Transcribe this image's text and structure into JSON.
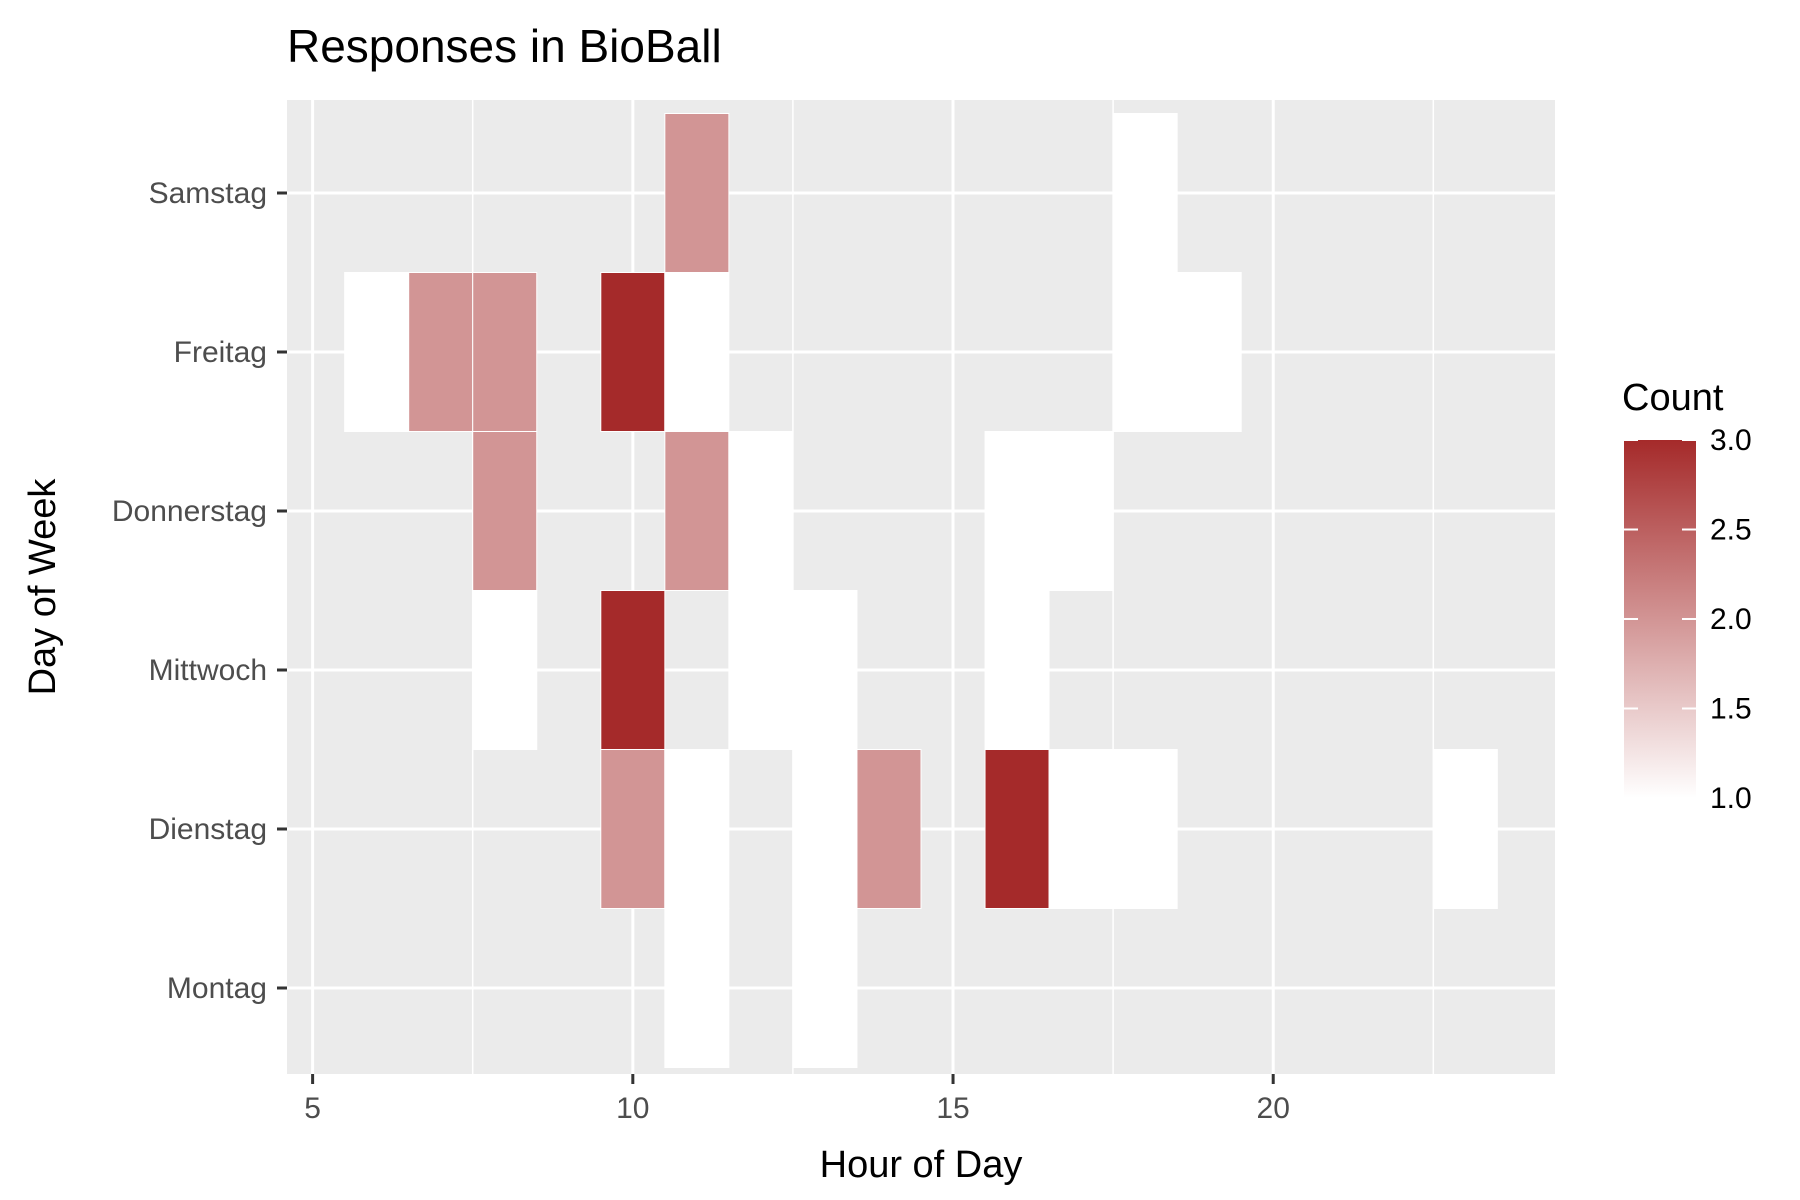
{
  "chart_data": {
    "type": "heatmap",
    "title": "Responses in BioBall",
    "xlabel": "Hour of Day",
    "ylabel": "Day of Week",
    "x_ticks": [
      5,
      10,
      15,
      20
    ],
    "xlim": [
      4.6,
      24.4
    ],
    "y_categories": [
      "Montag",
      "Dienstag",
      "Mittwoch",
      "Donnerstag",
      "Freitag",
      "Samstag"
    ],
    "legend": {
      "title": "Count",
      "ticks": [
        "1.0",
        "1.5",
        "2.0",
        "2.5",
        "3.0"
      ],
      "range": [
        1,
        3
      ],
      "low_color": "#ffffff",
      "high_color": "#a52a2a",
      "placement": "right"
    },
    "panel_background": "#ebebeb",
    "grid_color": "#ffffff",
    "cells": [
      {
        "day": "Samstag",
        "hour": 11,
        "count": 2
      },
      {
        "day": "Samstag",
        "hour": 18,
        "count": 1
      },
      {
        "day": "Freitag",
        "hour": 6,
        "count": 1
      },
      {
        "day": "Freitag",
        "hour": 7,
        "count": 2
      },
      {
        "day": "Freitag",
        "hour": 8,
        "count": 2
      },
      {
        "day": "Freitag",
        "hour": 10,
        "count": 3
      },
      {
        "day": "Freitag",
        "hour": 11,
        "count": 1
      },
      {
        "day": "Freitag",
        "hour": 18,
        "count": 1
      },
      {
        "day": "Freitag",
        "hour": 19,
        "count": 1
      },
      {
        "day": "Donnerstag",
        "hour": 8,
        "count": 2
      },
      {
        "day": "Donnerstag",
        "hour": 11,
        "count": 2
      },
      {
        "day": "Donnerstag",
        "hour": 12,
        "count": 1
      },
      {
        "day": "Donnerstag",
        "hour": 16,
        "count": 1
      },
      {
        "day": "Donnerstag",
        "hour": 17,
        "count": 1
      },
      {
        "day": "Mittwoch",
        "hour": 8,
        "count": 1
      },
      {
        "day": "Mittwoch",
        "hour": 10,
        "count": 3
      },
      {
        "day": "Mittwoch",
        "hour": 12,
        "count": 1
      },
      {
        "day": "Mittwoch",
        "hour": 13,
        "count": 1
      },
      {
        "day": "Mittwoch",
        "hour": 16,
        "count": 1
      },
      {
        "day": "Dienstag",
        "hour": 10,
        "count": 2
      },
      {
        "day": "Dienstag",
        "hour": 11,
        "count": 1
      },
      {
        "day": "Dienstag",
        "hour": 13,
        "count": 1
      },
      {
        "day": "Dienstag",
        "hour": 14,
        "count": 2
      },
      {
        "day": "Dienstag",
        "hour": 16,
        "count": 3
      },
      {
        "day": "Dienstag",
        "hour": 17,
        "count": 1
      },
      {
        "day": "Dienstag",
        "hour": 18,
        "count": 1
      },
      {
        "day": "Dienstag",
        "hour": 23,
        "count": 1
      },
      {
        "day": "Montag",
        "hour": 11,
        "count": 1
      },
      {
        "day": "Montag",
        "hour": 13,
        "count": 1
      }
    ]
  }
}
